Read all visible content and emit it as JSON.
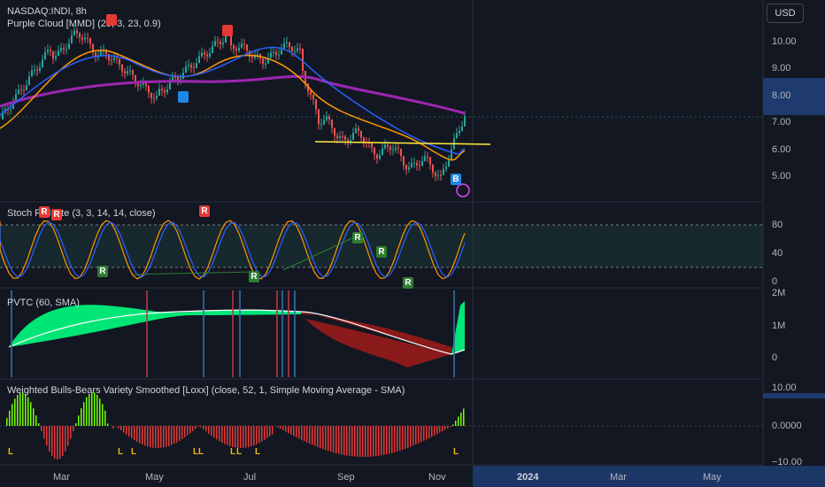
{
  "header": {
    "ticker": "NASDAQ:INDI, 8h",
    "indicator": "Purple Cloud [MMD] (25, 3, 23, 0.9)",
    "currency": "USD"
  },
  "panes": {
    "stoch": "Stoch RSI Lite (3, 3, 14, 14, close)",
    "pvtc": "PVTC (60, SMA)",
    "wbb": "Weighted Bulls-Bears Variety Smoothed [Loxx] (close, 52, 1, Simple Moving Average - SMA)"
  },
  "price_axis": [
    "10.00",
    "9.00",
    "8.00",
    "7.00",
    "6.00",
    "5.00"
  ],
  "stoch_axis": [
    "80",
    "40",
    "0"
  ],
  "pvtc_axis": [
    "2M",
    "1M",
    "0"
  ],
  "wbb_axis": [
    "10.00",
    "0.0000",
    "−10.00"
  ],
  "time_axis": [
    "Mar",
    "May",
    "Jul",
    "Sep",
    "Nov",
    "2024",
    "Mar",
    "May"
  ],
  "signals": {
    "r": "R",
    "b": "B",
    "l": "L"
  },
  "colors": {
    "bg": "#131722",
    "up": "#26a69a",
    "down": "#ef5350",
    "purple": "#9c27b0",
    "orange": "#ff9800",
    "blue": "#2962ff",
    "yellow": "#ffeb3b",
    "lime": "#00e676",
    "maroon": "#8b1a1a"
  }
}
